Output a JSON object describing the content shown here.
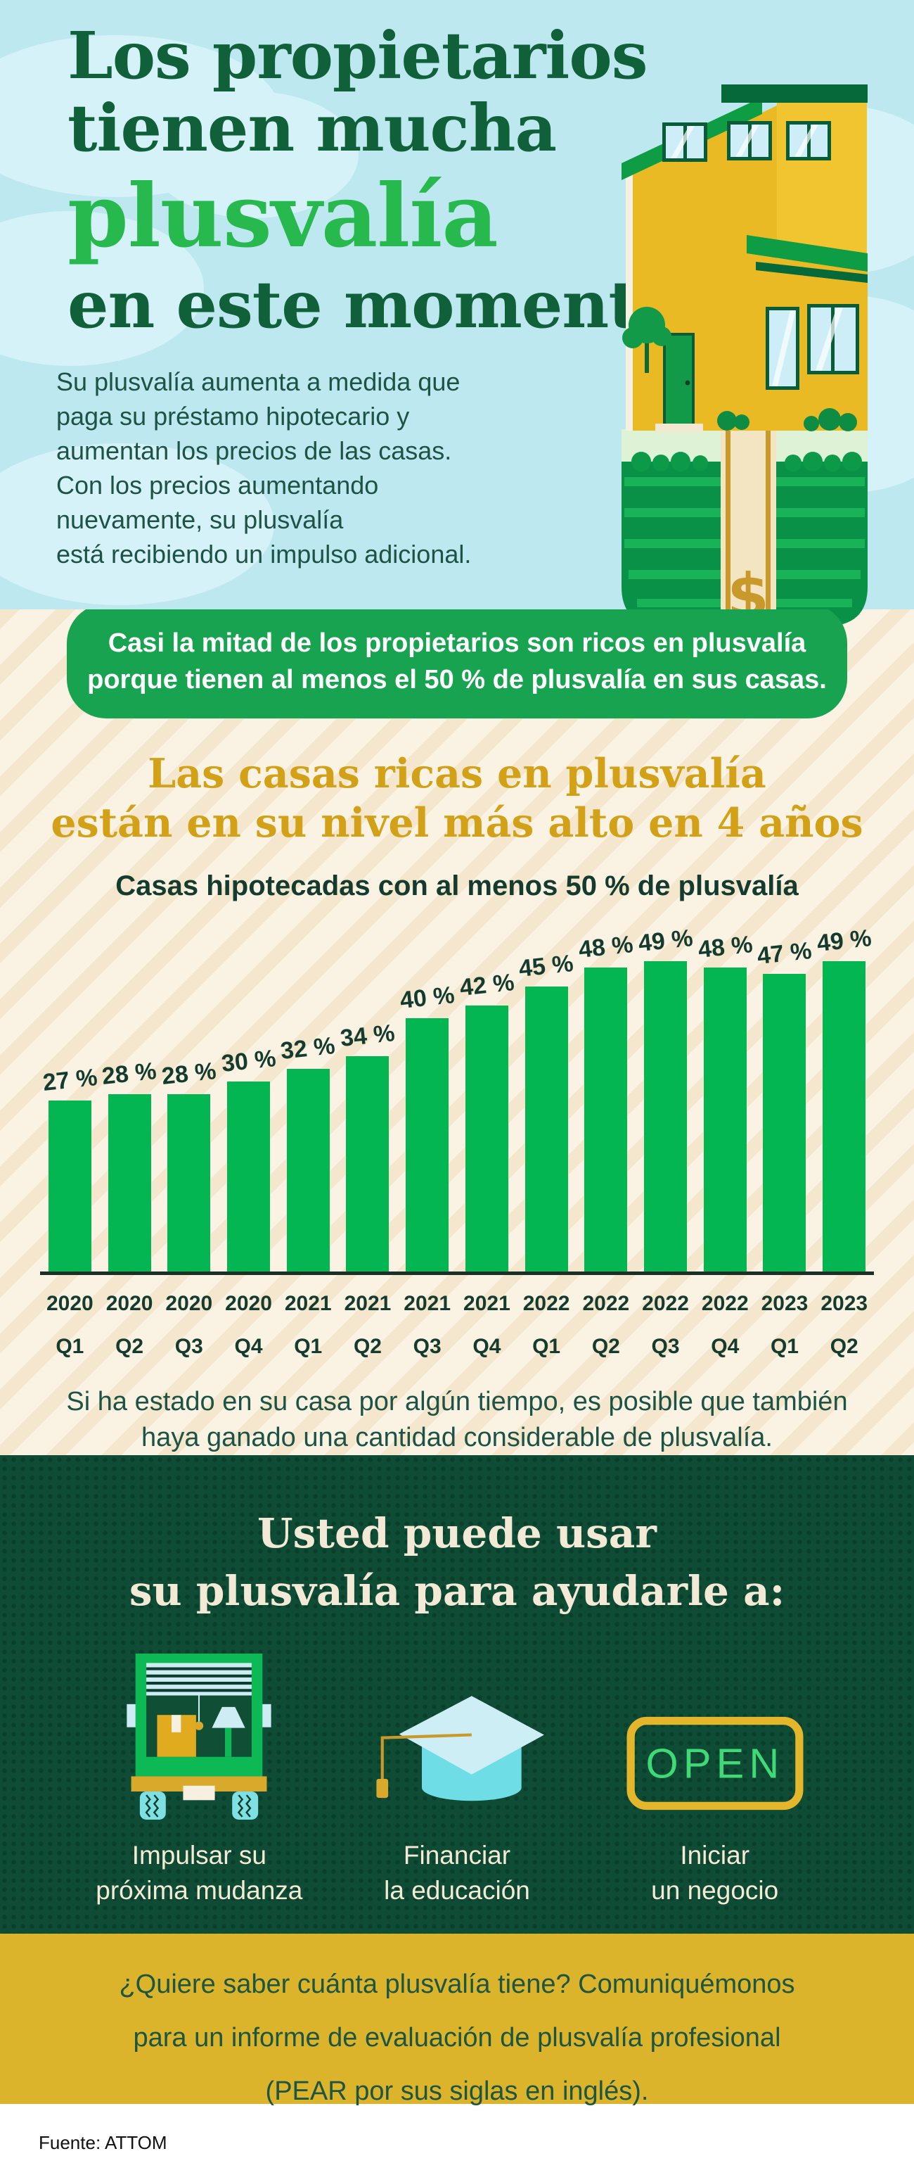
{
  "hero": {
    "title_line1": "Los propietarios",
    "title_line2": "tienen mucha",
    "title_highlight": "plusvalía",
    "title_line3": "en este momento",
    "intro_lines": [
      "Su plusvalía aumenta a medida que",
      "paga su préstamo hipotecario y",
      "aumentan los precios de las casas.",
      "Con los precios aumentando",
      "nuevamente, su plusvalía",
      "está recibiendo un impulso adicional."
    ],
    "house_dollar_sign": "$"
  },
  "banner": {
    "line1": "Casi la mitad de los propietarios son ricos en plusvalía",
    "line2": "porque tienen al menos el 50 % de plusvalía en sus casas."
  },
  "stats": {
    "heading_line1": "Las casas ricas en plusvalía",
    "heading_line2": "están en su nivel más alto en 4 años",
    "subtitle": "Casas hipotecadas con al menos 50 % de plusvalía",
    "note_line1": "Si ha estado en su casa por algún tiempo, es posible que también",
    "note_line2": "haya ganado una cantidad considerable de plusvalía."
  },
  "chart_data": {
    "type": "bar",
    "title": "Las casas ricas en plusvalía están en su nivel más alto en 4 años",
    "subtitle": "Casas hipotecadas con al menos 50 % de plusvalía",
    "categories": [
      "2020 Q1",
      "2020 Q2",
      "2020 Q3",
      "2020 Q4",
      "2021 Q1",
      "2021 Q2",
      "2021 Q3",
      "2021 Q4",
      "2022 Q1",
      "2022 Q2",
      "2022 Q3",
      "2022 Q4",
      "2023 Q1",
      "2023 Q2"
    ],
    "values": [
      27,
      28,
      28,
      30,
      32,
      34,
      40,
      42,
      45,
      48,
      49,
      48,
      47,
      49
    ],
    "unit": "%",
    "value_label_suffix": " %",
    "bar_color": "#04b652",
    "ylim": [
      0,
      50
    ],
    "grid": false,
    "legend": false,
    "source": "ATTOM"
  },
  "equity_uses": {
    "heading_line1": "Usted puede usar",
    "heading_line2": "su plusvalía para ayudarle a:",
    "items": [
      {
        "icon": "moving-truck-icon",
        "label_line1": "Impulsar su",
        "label_line2": "próxima mudanza"
      },
      {
        "icon": "graduation-cap-icon",
        "label_line1": "Financiar",
        "label_line2": "la educación"
      },
      {
        "icon": "open-sign-icon",
        "sign_text": "OPEN",
        "label_line1": "Iniciar",
        "label_line2": "un negocio"
      }
    ]
  },
  "cta": {
    "line1": "¿Quiere saber cuánta plusvalía tiene? Comuniquémonos",
    "line2": "para un informe de evaluación de plusvalía profesional",
    "line3": "(PEAR por sus siglas en inglés)."
  },
  "footer": {
    "source": "Fuente: ATTOM"
  },
  "colors": {
    "sky_blue": "#bde8f0",
    "cream": "#faf3e3",
    "banner_green": "#18a350",
    "bright_green": "#27b94e",
    "bar_green": "#04b652",
    "dark_green_section": "#0f4c35",
    "gold": "#d3a118",
    "cta_yellow": "#dcb42c",
    "title_green": "#10603a"
  }
}
